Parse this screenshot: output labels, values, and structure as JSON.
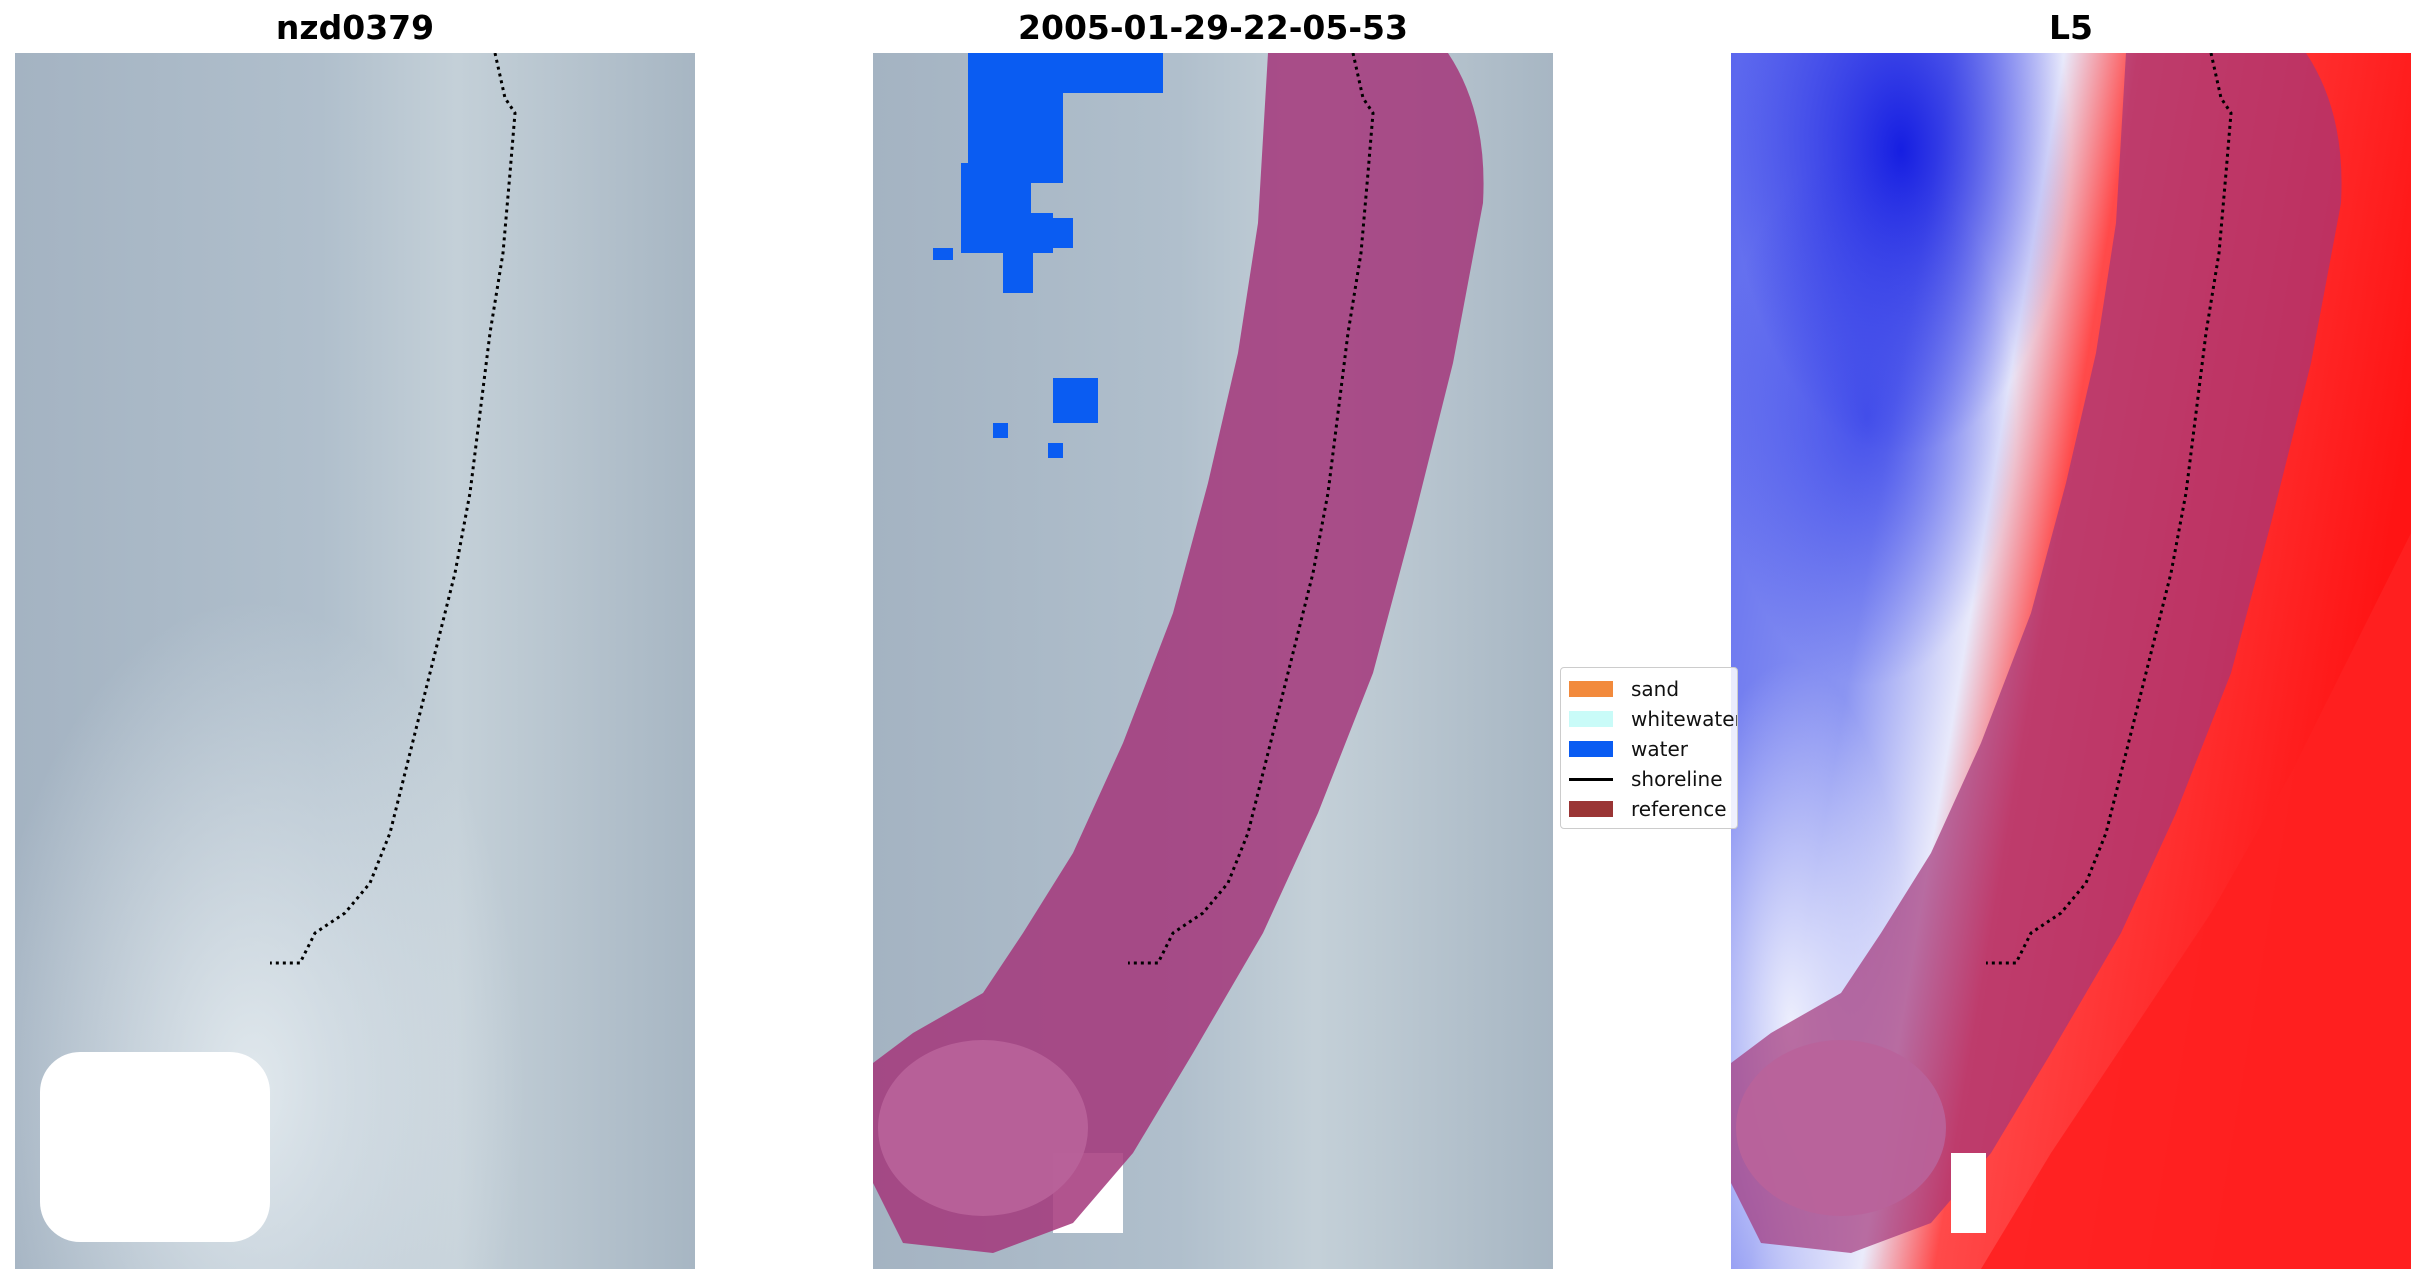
{
  "panels": [
    {
      "title": "nzd0379"
    },
    {
      "title": "2005-01-29-22-05-53"
    },
    {
      "title": "L5"
    }
  ],
  "legend": {
    "items": [
      {
        "label": "sand",
        "color": "#f28a3c",
        "type": "patch"
      },
      {
        "label": "whitewater",
        "color": "#c9fbf8",
        "type": "patch"
      },
      {
        "label": "water",
        "color": "#0a5cf2",
        "type": "patch"
      },
      {
        "label": "shoreline",
        "color": "#000000",
        "type": "line"
      },
      {
        "label": "reference",
        "color": "#9a3535",
        "type": "patch"
      }
    ]
  },
  "colors": {
    "reference_overlay": "#a3367a",
    "water_mask": "#0a5cf2",
    "cloud": "#ffffff",
    "classified_land": "#ff1a1a",
    "classified_water": "#1a2af2"
  }
}
